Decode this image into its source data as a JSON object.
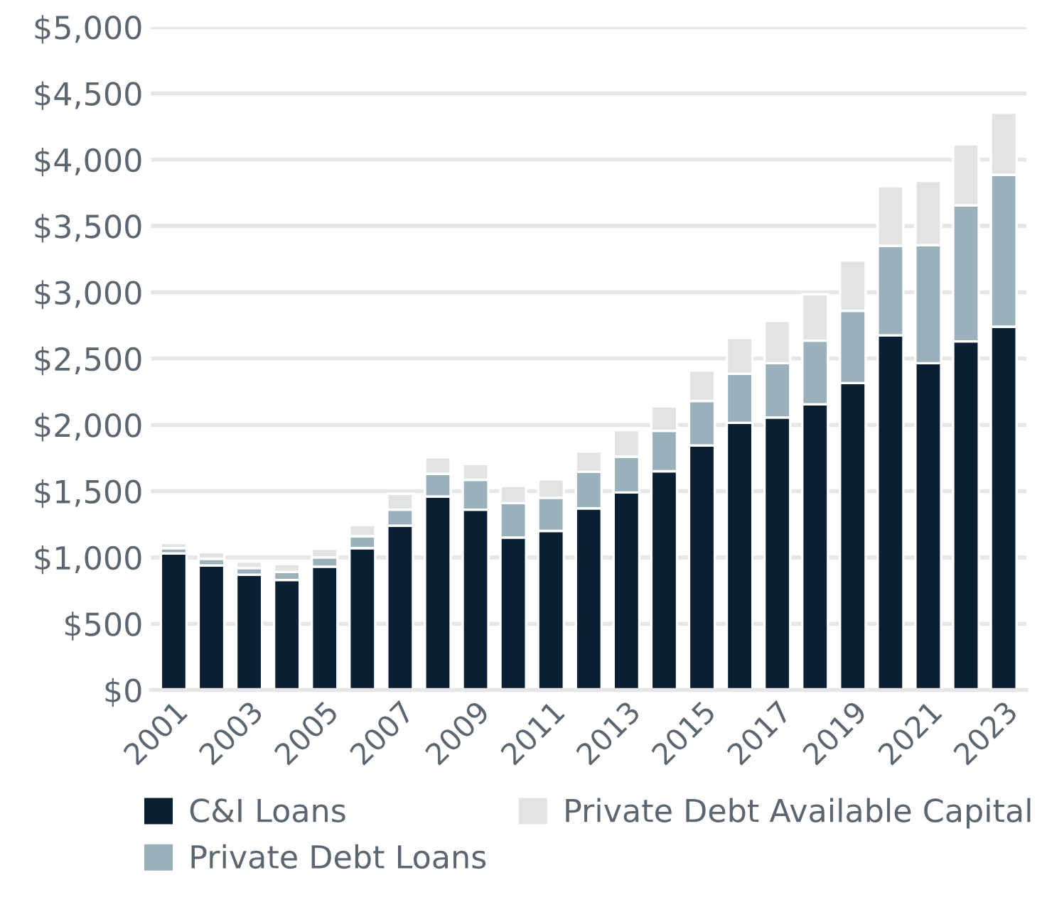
{
  "chart_data": {
    "type": "bar",
    "stacked": true,
    "categories": [
      "2001",
      null,
      "2003",
      null,
      "2005",
      null,
      "2007",
      null,
      "2009",
      null,
      "2011",
      null,
      "2013",
      null,
      "2015",
      null,
      "2017",
      null,
      "2019",
      null,
      "2021",
      null,
      "2023"
    ],
    "series": [
      {
        "name": "C&I Loans",
        "color": "#0b1f33",
        "values": [
          1030,
          940,
          870,
          830,
          930,
          1070,
          1240,
          1460,
          1360,
          1150,
          1200,
          1370,
          1490,
          1650,
          1845,
          2015,
          2055,
          2155,
          2315,
          2675,
          2465,
          2630,
          2740
        ]
      },
      {
        "name": "Private Debt Loans",
        "color": "#9ab0bb",
        "values": [
          40,
          50,
          50,
          60,
          70,
          90,
          120,
          170,
          225,
          260,
          250,
          275,
          270,
          305,
          335,
          370,
          410,
          480,
          545,
          675,
          890,
          1025,
          1145
        ]
      },
      {
        "name": "Private Debt Available Capital",
        "color": "#e2e3e3",
        "values": [
          40,
          50,
          50,
          60,
          65,
          85,
          120,
          125,
          120,
          130,
          140,
          155,
          200,
          185,
          230,
          270,
          320,
          350,
          380,
          450,
          485,
          460,
          470
        ]
      }
    ],
    "ylim": [
      0,
      5000
    ],
    "yticks": [
      {
        "value": 0,
        "label": "$0"
      },
      {
        "value": 500,
        "label": "$500"
      },
      {
        "value": 1000,
        "label": "$1,000"
      },
      {
        "value": 1500,
        "label": "$1,500"
      },
      {
        "value": 2000,
        "label": "$2,000"
      },
      {
        "value": 2500,
        "label": "$2,500"
      },
      {
        "value": 3000,
        "label": "$3,000"
      },
      {
        "value": 3500,
        "label": "$3,500"
      },
      {
        "value": 4000,
        "label": "$4,000"
      },
      {
        "value": 4500,
        "label": "$4,500"
      },
      {
        "value": 5000,
        "label": "$5,000"
      }
    ],
    "grid": "y",
    "legend": "bottom"
  }
}
